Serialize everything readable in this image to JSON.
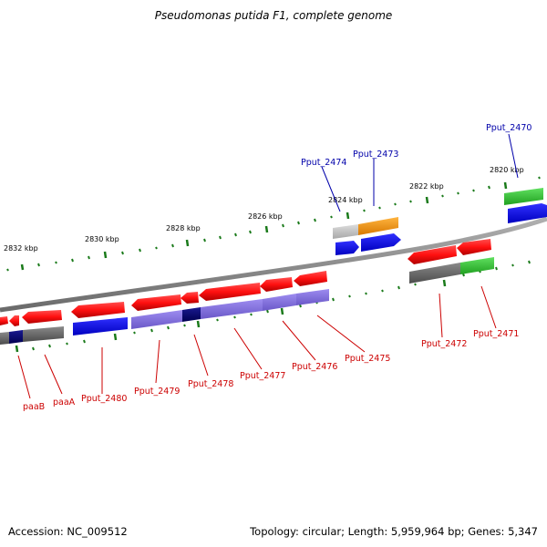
{
  "title": "Pseudomonas putida F1, complete genome",
  "footer": {
    "accession": "Accession: NC_009512",
    "stats": "Topology: circular; Length: 5,959,964 bp; Genes: 5,347"
  },
  "colors": {
    "forward_red": "#ff2020",
    "forward_dark": "#c00000",
    "cds_blue": "#1010e0",
    "cds_purple": "#7b68d8",
    "cds_navy": "#000070",
    "cds_gray": "#6a6a6a",
    "cds_orange": "#f59a10",
    "cds_green": "#35c435",
    "cds_lightgray": "#c4c4c4",
    "backbone": "#888888",
    "tick": "#1a7a1a",
    "label_red": "#cc0000",
    "label_blue": "#0000aa"
  },
  "ticks": [
    {
      "label": "2832 kbp"
    },
    {
      "label": "2830 kbp"
    },
    {
      "label": "2828 kbp"
    },
    {
      "label": "2826 kbp"
    },
    {
      "label": "2824 kbp"
    },
    {
      "label": "2822 kbp"
    },
    {
      "label": "2820 kbp"
    }
  ],
  "top_labels": [
    {
      "text": "Pput_2474"
    },
    {
      "text": "Pput_2473"
    },
    {
      "text": "Pput_2470"
    }
  ],
  "bottom_labels": [
    {
      "text": "paaB"
    },
    {
      "text": "paaA"
    },
    {
      "text": "Pput_2480"
    },
    {
      "text": "Pput_2479"
    },
    {
      "text": "Pput_2478"
    },
    {
      "text": "Pput_2477"
    },
    {
      "text": "Pput_2476"
    },
    {
      "text": "Pput_2475"
    },
    {
      "text": "Pput_2472"
    },
    {
      "text": "Pput_2471"
    }
  ]
}
